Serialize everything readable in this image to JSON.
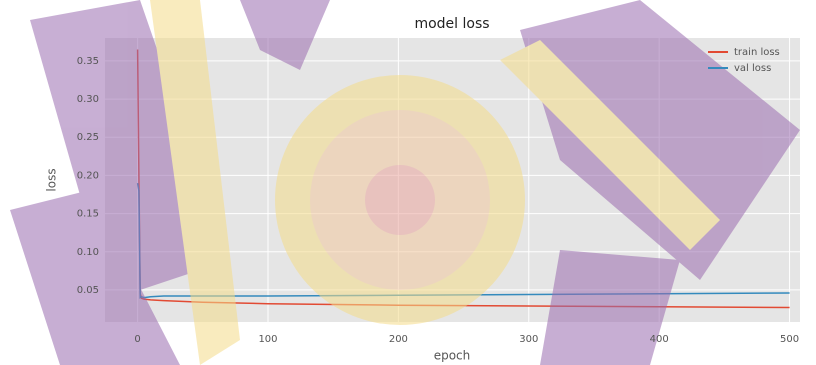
{
  "chart_data": {
    "type": "line",
    "title": "model loss",
    "x_label": "epoch",
    "y_label": "loss",
    "x": [
      0,
      1,
      2,
      3,
      5,
      10,
      20,
      50,
      100,
      200,
      300,
      400,
      500
    ],
    "series": [
      {
        "name": "train loss",
        "color": "#e24a33",
        "values": [
          0.365,
          0.2,
          0.045,
          0.039,
          0.038,
          0.037,
          0.036,
          0.034,
          0.032,
          0.03,
          0.029,
          0.028,
          0.027
        ]
      },
      {
        "name": "val loss",
        "color": "#348abd",
        "values": [
          0.19,
          0.18,
          0.04,
          0.041,
          0.04,
          0.041,
          0.042,
          0.042,
          0.042,
          0.043,
          0.044,
          0.045,
          0.046
        ]
      }
    ],
    "xlim": [
      -25,
      508
    ],
    "ylim": [
      0.008,
      0.38
    ],
    "xticks": [
      0,
      100,
      200,
      300,
      400,
      500
    ],
    "yticks": [
      {
        "value": 0.05,
        "label": "0.05"
      },
      {
        "value": 0.1,
        "label": "0.10"
      },
      0.15,
      {
        "value": 0.2,
        "label": "0.20"
      },
      0.25,
      {
        "value": 0.3,
        "label": "0.30"
      },
      0.35
    ],
    "grid": true,
    "legend": "upper right"
  }
}
